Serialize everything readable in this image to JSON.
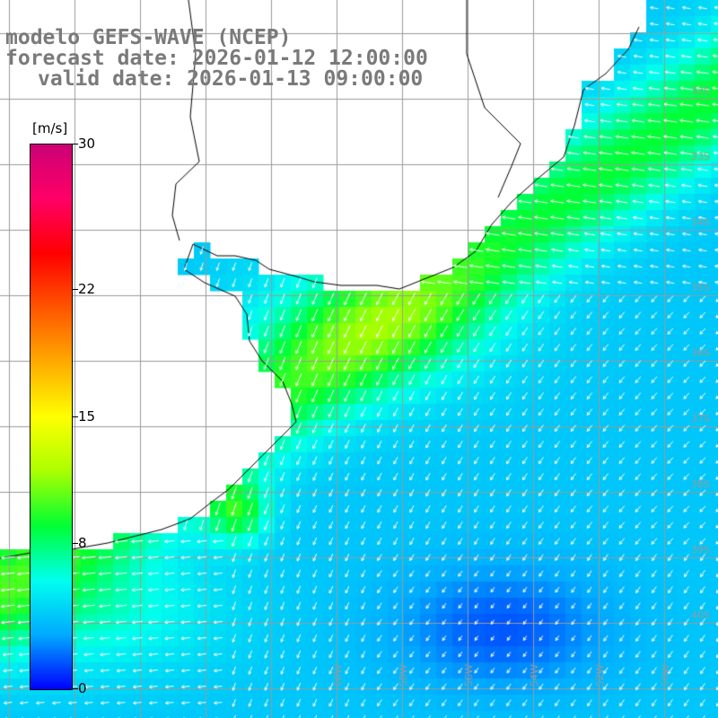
{
  "titles": {
    "model": "modelo GEFS-WAVE (NCEP)",
    "forecast": "forecast date: 2026-01-12 12:00:00",
    "valid": "valid date: 2026-01-13 09:00:00"
  },
  "colorbar": {
    "unit": "[m/s]",
    "range": [
      0,
      30
    ],
    "ticks": [
      "0",
      "8",
      "15",
      "22",
      "30"
    ],
    "stops": [
      "#0000ff",
      "#00aaff",
      "#00ffee",
      "#00ff33",
      "#aaff00",
      "#ffff00",
      "#ffaa00",
      "#ff5500",
      "#ff0000",
      "#ff0066",
      "#cc0077"
    ]
  },
  "map": {
    "lat_labels": [
      "32S",
      "33S",
      "34S",
      "35S",
      "36S",
      "37S",
      "38S",
      "39S",
      "40S"
    ],
    "lon_labels": [
      "60W",
      "58W",
      "56W",
      "54W",
      "52W",
      "50W",
      "48W"
    ],
    "land_color": "#ffffff",
    "grid_color": "#9a9a9a",
    "arrow_color": "#ffffff",
    "ocean_low_color": "#0022ee",
    "ocean_mid_color": "#0099ff",
    "ocean_high_color": "#00ccff",
    "peak_color": "#00dd66"
  }
}
